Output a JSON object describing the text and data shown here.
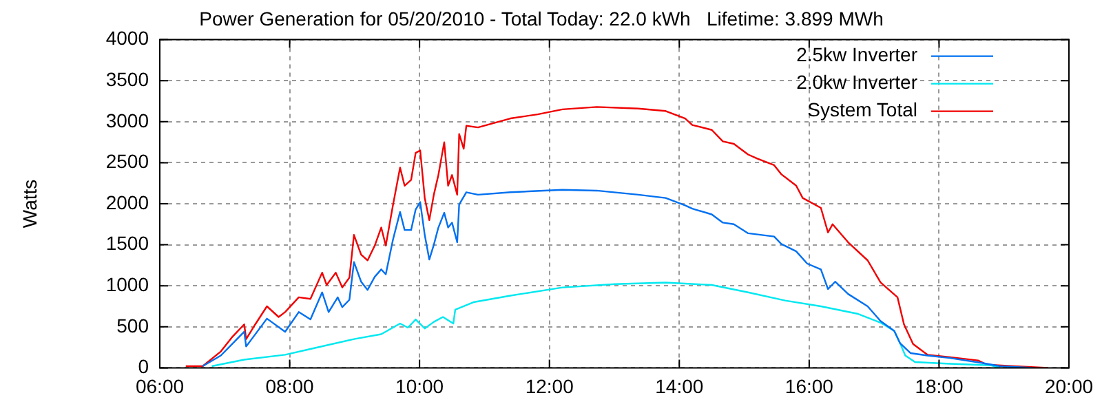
{
  "chart_data": {
    "type": "line",
    "title": "Power Generation for 05/20/2010 - Total Today: 22.0 kWh   Lifetime: 3.899 MWh",
    "ylabel": "Watts",
    "xlim": [
      6,
      20
    ],
    "xticks": [
      {
        "value": 6,
        "label": "06:00"
      },
      {
        "value": 8,
        "label": "08:00"
      },
      {
        "value": 10,
        "label": "10:00"
      },
      {
        "value": 12,
        "label": "12:00"
      },
      {
        "value": 14,
        "label": "14:00"
      },
      {
        "value": 16,
        "label": "16:00"
      },
      {
        "value": 18,
        "label": "18:00"
      },
      {
        "value": 20,
        "label": "20:00"
      }
    ],
    "ylim": [
      0,
      4000
    ],
    "yticks": [
      0,
      500,
      1000,
      1500,
      2000,
      2500,
      3000,
      3500,
      4000
    ],
    "grid": true,
    "legend": "top right",
    "marker": "none",
    "line_style": "solid",
    "series": [
      {
        "name": "2.5kw Inverter",
        "color": "#0070f0",
        "x": [
          6.66,
          6.94,
          7.3,
          7.33,
          7.65,
          7.93,
          8.14,
          8.32,
          8.5,
          8.6,
          8.74,
          8.81,
          8.92,
          8.99,
          9.1,
          9.2,
          9.31,
          9.41,
          9.48,
          9.59,
          9.7,
          9.77,
          9.87,
          9.94,
          10.01,
          10.08,
          10.15,
          10.22,
          10.29,
          10.38,
          10.44,
          10.5,
          10.58,
          10.61,
          10.72,
          10.9,
          11.4,
          12.2,
          12.73,
          13.37,
          13.79,
          14.09,
          14.2,
          14.5,
          14.67,
          14.84,
          15.06,
          15.46,
          15.57,
          15.8,
          15.97,
          16.18,
          16.29,
          16.4,
          16.6,
          16.9,
          17.1,
          17.31,
          17.4,
          17.56,
          17.82,
          18.17,
          18.66,
          18.94,
          19.45
        ],
        "values": [
          20,
          150,
          440,
          260,
          600,
          440,
          680,
          590,
          920,
          680,
          860,
          740,
          830,
          1290,
          1050,
          950,
          1110,
          1200,
          1140,
          1560,
          1900,
          1680,
          1680,
          1930,
          2020,
          1620,
          1320,
          1500,
          1710,
          1890,
          1710,
          1770,
          1530,
          1990,
          2140,
          2110,
          2140,
          2170,
          2160,
          2110,
          2070,
          1980,
          1940,
          1870,
          1770,
          1750,
          1640,
          1600,
          1510,
          1420,
          1270,
          1200,
          960,
          1050,
          900,
          750,
          570,
          450,
          300,
          180,
          150,
          120,
          60,
          20,
          0
        ]
      },
      {
        "name": "2.0kw Inverter",
        "color": "#00e8f0",
        "x": [
          6.8,
          7.3,
          7.93,
          8.32,
          8.99,
          9.41,
          9.7,
          9.82,
          9.94,
          10.08,
          10.22,
          10.36,
          10.52,
          10.55,
          10.83,
          11.4,
          12.2,
          13.01,
          13.79,
          14.5,
          15.06,
          15.63,
          16.18,
          16.74,
          17.1,
          17.31,
          17.4,
          17.48,
          17.63,
          18.17,
          18.8,
          18.94
        ],
        "values": [
          20,
          100,
          160,
          230,
          350,
          410,
          540,
          490,
          590,
          480,
          560,
          620,
          540,
          710,
          800,
          880,
          980,
          1020,
          1040,
          1010,
          920,
          820,
          750,
          660,
          550,
          450,
          300,
          150,
          70,
          50,
          30,
          0
        ]
      },
      {
        "name": "System Total",
        "color": "#f00000",
        "x": [
          6.4,
          6.66,
          6.94,
          7.12,
          7.3,
          7.33,
          7.47,
          7.65,
          7.83,
          7.93,
          8.14,
          8.32,
          8.5,
          8.57,
          8.71,
          8.81,
          8.92,
          8.99,
          9.1,
          9.2,
          9.31,
          9.41,
          9.48,
          9.59,
          9.7,
          9.77,
          9.87,
          9.94,
          10.01,
          10.08,
          10.15,
          10.22,
          10.29,
          10.38,
          10.44,
          10.5,
          10.58,
          10.61,
          10.68,
          10.72,
          10.9,
          11.4,
          11.82,
          12.2,
          12.73,
          13.37,
          13.79,
          14.09,
          14.2,
          14.5,
          14.67,
          14.84,
          15.06,
          15.2,
          15.46,
          15.57,
          15.8,
          15.9,
          16.18,
          16.29,
          16.36,
          16.6,
          16.9,
          17.1,
          17.36,
          17.46,
          17.6,
          17.82,
          18.17,
          18.6,
          18.73,
          19.15,
          19.68
        ],
        "values": [
          20,
          20,
          200,
          380,
          530,
          350,
          530,
          750,
          620,
          680,
          860,
          840,
          1160,
          1010,
          1160,
          980,
          1100,
          1620,
          1380,
          1310,
          1490,
          1710,
          1490,
          1980,
          2440,
          2220,
          2290,
          2620,
          2650,
          2070,
          1800,
          2110,
          2350,
          2750,
          2220,
          2350,
          2110,
          2850,
          2670,
          2950,
          2930,
          3040,
          3090,
          3150,
          3180,
          3160,
          3130,
          3040,
          2960,
          2900,
          2760,
          2730,
          2600,
          2550,
          2470,
          2360,
          2220,
          2070,
          1950,
          1650,
          1750,
          1530,
          1310,
          1040,
          860,
          530,
          290,
          160,
          130,
          90,
          40,
          20,
          0
        ]
      }
    ]
  }
}
